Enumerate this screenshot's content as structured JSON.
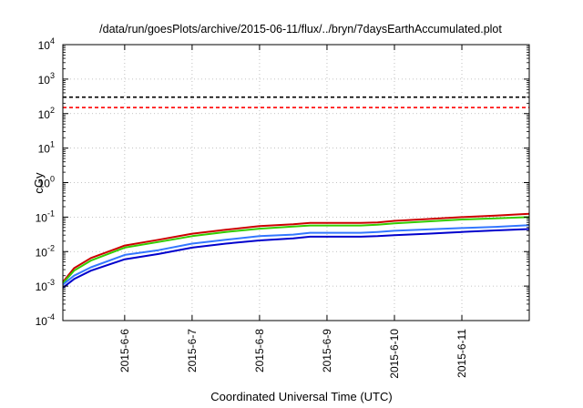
{
  "chart_data": {
    "type": "line",
    "title": "/data/run/goesPlots/archive/2015-06-11/flux/../bryn/7daysEarthAccumulated.plot",
    "xlabel": "Coordinated Universal Time (UTC)",
    "ylabel": "cGy",
    "yscale": "log",
    "ylim": [
      0.0001,
      10000
    ],
    "y_ticks": [
      {
        "base": "10",
        "exp": "-4",
        "value": 0.0001
      },
      {
        "base": "10",
        "exp": "-3",
        "value": 0.001
      },
      {
        "base": "10",
        "exp": "-2",
        "value": 0.01
      },
      {
        "base": "10",
        "exp": "-1",
        "value": 0.1
      },
      {
        "base": "10",
        "exp": "0",
        "value": 1
      },
      {
        "base": "10",
        "exp": "1",
        "value": 10
      },
      {
        "base": "10",
        "exp": "2",
        "value": 100
      },
      {
        "base": "10",
        "exp": "3",
        "value": 1000
      },
      {
        "base": "10",
        "exp": "4",
        "value": 10000
      }
    ],
    "xlim": [
      2015.0504,
      2015.0599
    ],
    "xlim_dates": [
      "2015-06-05 02:00",
      "2015-06-11 23:59"
    ],
    "x_ticks": [
      {
        "label": "2015-6-6",
        "date": "2015-06-06"
      },
      {
        "label": "2015-6-7",
        "date": "2015-06-07"
      },
      {
        "label": "2015-6-8",
        "date": "2015-06-08"
      },
      {
        "label": "2015-6-9",
        "date": "2015-06-09"
      },
      {
        "label": "2015-6-10",
        "date": "2015-06-10"
      },
      {
        "label": "2015-6-11",
        "date": "2015-06-11"
      }
    ],
    "grid": true,
    "legend": "none",
    "thresholds": [
      {
        "value": 300,
        "color": "#000000",
        "style": "dashed"
      },
      {
        "value": 150,
        "color": "#ff0000",
        "style": "dashed"
      }
    ],
    "series": [
      {
        "color": "#cc0000",
        "points": [
          [
            "2015-06-05 02:00",
            0.0013
          ],
          [
            "2015-06-05 06:00",
            0.0033
          ],
          [
            "2015-06-05 12:00",
            0.0065
          ],
          [
            "2015-06-06 00:00",
            0.015
          ],
          [
            "2015-06-06 12:00",
            0.022
          ],
          [
            "2015-06-07 00:00",
            0.033
          ],
          [
            "2015-06-07 12:00",
            0.043
          ],
          [
            "2015-06-08 00:00",
            0.055
          ],
          [
            "2015-06-08 12:00",
            0.062
          ],
          [
            "2015-06-08 18:00",
            0.068
          ],
          [
            "2015-06-09 12:00",
            0.068
          ],
          [
            "2015-06-09 18:00",
            0.07
          ],
          [
            "2015-06-10 00:00",
            0.078
          ],
          [
            "2015-06-10 12:00",
            0.088
          ],
          [
            "2015-06-11 00:00",
            0.1
          ],
          [
            "2015-06-11 12:00",
            0.11
          ],
          [
            "2015-06-11 23:59",
            0.125
          ]
        ]
      },
      {
        "color": "#33cc00",
        "points": [
          [
            "2015-06-05 02:00",
            0.0012
          ],
          [
            "2015-06-05 06:00",
            0.0028
          ],
          [
            "2015-06-05 12:00",
            0.0055
          ],
          [
            "2015-06-06 00:00",
            0.013
          ],
          [
            "2015-06-06 12:00",
            0.019
          ],
          [
            "2015-06-07 00:00",
            0.028
          ],
          [
            "2015-06-07 12:00",
            0.037
          ],
          [
            "2015-06-08 00:00",
            0.046
          ],
          [
            "2015-06-08 12:00",
            0.053
          ],
          [
            "2015-06-08 18:00",
            0.057
          ],
          [
            "2015-06-09 12:00",
            0.057
          ],
          [
            "2015-06-09 18:00",
            0.06
          ],
          [
            "2015-06-10 00:00",
            0.066
          ],
          [
            "2015-06-10 12:00",
            0.075
          ],
          [
            "2015-06-11 00:00",
            0.085
          ],
          [
            "2015-06-11 12:00",
            0.092
          ],
          [
            "2015-06-11 23:59",
            0.1
          ]
        ]
      },
      {
        "color": "#3377ff",
        "points": [
          [
            "2015-06-05 02:00",
            0.0011
          ],
          [
            "2015-06-05 06:00",
            0.002
          ],
          [
            "2015-06-05 12:00",
            0.0035
          ],
          [
            "2015-06-06 00:00",
            0.008
          ],
          [
            "2015-06-06 12:00",
            0.011
          ],
          [
            "2015-06-07 00:00",
            0.017
          ],
          [
            "2015-06-07 12:00",
            0.022
          ],
          [
            "2015-06-08 00:00",
            0.028
          ],
          [
            "2015-06-08 12:00",
            0.031
          ],
          [
            "2015-06-08 18:00",
            0.035
          ],
          [
            "2015-06-09 12:00",
            0.035
          ],
          [
            "2015-06-09 18:00",
            0.037
          ],
          [
            "2015-06-10 00:00",
            0.04
          ],
          [
            "2015-06-10 12:00",
            0.044
          ],
          [
            "2015-06-11 00:00",
            0.048
          ],
          [
            "2015-06-11 12:00",
            0.052
          ],
          [
            "2015-06-11 23:59",
            0.058
          ]
        ]
      },
      {
        "color": "#0000cc",
        "points": [
          [
            "2015-06-05 02:00",
            0.0009
          ],
          [
            "2015-06-05 06:00",
            0.0016
          ],
          [
            "2015-06-05 12:00",
            0.0028
          ],
          [
            "2015-06-06 00:00",
            0.006
          ],
          [
            "2015-06-06 12:00",
            0.0085
          ],
          [
            "2015-06-07 00:00",
            0.013
          ],
          [
            "2015-06-07 12:00",
            0.017
          ],
          [
            "2015-06-08 00:00",
            0.021
          ],
          [
            "2015-06-08 12:00",
            0.024
          ],
          [
            "2015-06-08 18:00",
            0.027
          ],
          [
            "2015-06-09 12:00",
            0.027
          ],
          [
            "2015-06-09 18:00",
            0.028
          ],
          [
            "2015-06-10 00:00",
            0.03
          ],
          [
            "2015-06-10 12:00",
            0.033
          ],
          [
            "2015-06-11 00:00",
            0.037
          ],
          [
            "2015-06-11 12:00",
            0.041
          ],
          [
            "2015-06-11 23:59",
            0.045
          ]
        ]
      }
    ]
  }
}
